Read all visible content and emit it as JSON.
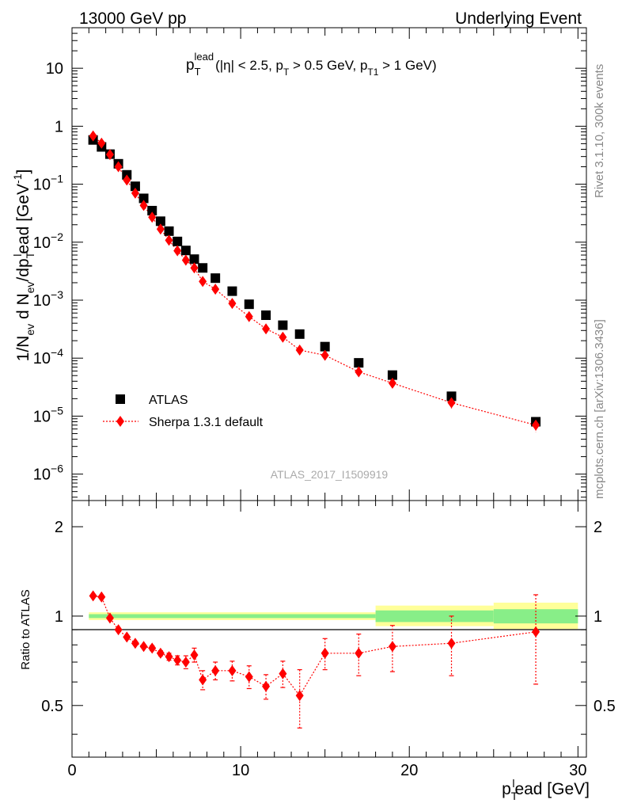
{
  "header": {
    "left": "13000 GeV pp",
    "right": "Underlying Event",
    "side_rivet": "Rivet 3.1.10,  300k events",
    "side_mcplots": "mcplots.cern.ch [arXiv:1306.3436]",
    "watermark": "ATLAS_2017_I1509919"
  },
  "colors": {
    "data": "#000000",
    "mc": "#ff0000",
    "band_outer": "#ffff99",
    "band_inner": "#88ee88"
  },
  "chart_data": [
    {
      "type": "scatter",
      "panel": "main",
      "title": "pT lead (|η| < 2.5, pT > 0.5 GeV, pT1 > 1 GeV)",
      "title_parts": {
        "p": "p",
        "sub_T": "T",
        "sup_lead": "lead",
        "mid1": "(|η| < 2.5, p",
        "mid2": " > 0.5 GeV, p",
        "sub_T1": "T1",
        "end": " > 1 GeV)"
      },
      "ylabel": "1/Nev d Nev/dpTlead [GeV-1]",
      "ylabel_parts": {
        "a": "1/N",
        "ev": "ev",
        "b": " d N",
        "ev2": "ev",
        "c": "/dp",
        "T": "T",
        "l": "l",
        "d": "ead [GeV",
        "m1": "-1",
        "e": "]"
      },
      "xlabel": "pTlead [GeV]",
      "xlim": [
        0,
        30.5
      ],
      "ylim": [
        3.5e-07,
        50
      ],
      "yscale": "log",
      "ytick_labels": [
        {
          "value": 10,
          "base": "10",
          "exp": ""
        },
        {
          "value": 1,
          "base": "1",
          "exp": ""
        },
        {
          "value": 0.1,
          "base": "10",
          "exp": "−1"
        },
        {
          "value": 0.01,
          "base": "10",
          "exp": "−2"
        },
        {
          "value": 0.001,
          "base": "10",
          "exp": "−3"
        },
        {
          "value": 0.0001,
          "base": "10",
          "exp": "−4"
        },
        {
          "value": 1e-05,
          "base": "10",
          "exp": "−5"
        },
        {
          "value": 1e-06,
          "base": "10",
          "exp": "−6"
        }
      ],
      "legend": {
        "position": "lower-left",
        "entries": [
          "ATLAS",
          "Sherpa 1.3.1 default"
        ]
      },
      "series": [
        {
          "name": "ATLAS",
          "x": [
            1.25,
            1.75,
            2.25,
            2.75,
            3.25,
            3.75,
            4.25,
            4.75,
            5.25,
            5.75,
            6.25,
            6.75,
            7.25,
            7.75,
            8.5,
            9.5,
            10.5,
            11.5,
            12.5,
            13.5,
            15,
            17,
            19,
            22.5,
            27.5
          ],
          "y": [
            0.58,
            0.44,
            0.33,
            0.225,
            0.145,
            0.092,
            0.057,
            0.035,
            0.023,
            0.0155,
            0.0103,
            0.0072,
            0.0051,
            0.0036,
            0.0024,
            0.00143,
            0.00085,
            0.00055,
            0.00037,
            0.00026,
            0.000158,
            8.3e-05,
            5.1e-05,
            2.2e-05,
            8e-06
          ],
          "marker": "square"
        },
        {
          "name": "Sherpa 1.3.1 default",
          "x": [
            1.25,
            1.75,
            2.25,
            2.75,
            3.25,
            3.75,
            4.25,
            4.75,
            5.25,
            5.75,
            6.25,
            6.75,
            7.25,
            7.75,
            8.5,
            9.5,
            10.5,
            11.5,
            12.5,
            13.5,
            15,
            17,
            19,
            22.5,
            27.5
          ],
          "y": [
            0.68,
            0.51,
            0.325,
            0.2,
            0.118,
            0.07,
            0.043,
            0.027,
            0.0168,
            0.0108,
            0.0071,
            0.0049,
            0.0036,
            0.0021,
            0.00155,
            0.00088,
            0.00052,
            0.00032,
            0.00023,
            0.000138,
            0.000112,
            5.8e-05,
            3.7e-05,
            1.7e-05,
            7e-06
          ],
          "yerr": [
            0,
            0,
            0,
            0,
            0,
            0,
            0,
            0,
            0,
            0,
            0,
            0,
            0,
            0,
            0,
            0,
            0,
            0,
            0,
            0.15,
            0.1,
            0.15,
            0.15,
            0.2,
            0.25
          ],
          "marker": "diamond",
          "line": "dotted"
        }
      ]
    },
    {
      "type": "line",
      "panel": "ratio",
      "ylabel": "Ratio to ATLAS",
      "xlabel": "pTlead [GeV]",
      "xlim": [
        0,
        30.5
      ],
      "ylim": [
        0.335,
        2.45
      ],
      "yscale": "log",
      "ytick_labels": [
        {
          "value": 0.5,
          "label": "0.5"
        },
        {
          "value": 1,
          "label": "1"
        },
        {
          "value": 2,
          "label": "2"
        }
      ],
      "xtick_labels": [
        {
          "value": 0,
          "label": "0"
        },
        {
          "value": 10,
          "label": "10"
        },
        {
          "value": 20,
          "label": "20"
        },
        {
          "value": 30,
          "label": "30"
        }
      ],
      "uncertainty_bands": [
        {
          "x": [
            1,
            18
          ],
          "outer": [
            0.97,
            1.03
          ],
          "inner": [
            0.985,
            1.015
          ]
        },
        {
          "x": [
            18,
            25
          ],
          "outer": [
            0.925,
            1.085
          ],
          "inner": [
            0.955,
            1.045
          ]
        },
        {
          "x": [
            25,
            30
          ],
          "outer": [
            0.905,
            1.11
          ],
          "inner": [
            0.945,
            1.055
          ]
        }
      ],
      "series": [
        {
          "name": "Sherpa 1.3.1 default",
          "x": [
            1.25,
            1.75,
            2.25,
            2.75,
            3.25,
            3.75,
            4.25,
            4.75,
            5.25,
            5.75,
            6.25,
            6.75,
            7.25,
            7.75,
            8.5,
            9.5,
            10.5,
            11.5,
            12.5,
            13.5,
            15,
            17,
            19,
            22.5,
            27.5
          ],
          "y": [
            1.17,
            1.16,
            0.985,
            0.9,
            0.85,
            0.81,
            0.79,
            0.78,
            0.75,
            0.73,
            0.71,
            0.7,
            0.74,
            0.61,
            0.655,
            0.655,
            0.625,
            0.58,
            0.64,
            0.54,
            0.75,
            0.75,
            0.79,
            0.81,
            0.885
          ],
          "ylow": [
            1.17,
            1.16,
            0.985,
            0.89,
            0.84,
            0.8,
            0.78,
            0.765,
            0.735,
            0.71,
            0.685,
            0.665,
            0.7,
            0.565,
            0.61,
            0.605,
            0.57,
            0.525,
            0.575,
            0.42,
            0.66,
            0.63,
            0.65,
            0.63,
            0.59
          ],
          "yhigh": [
            1.17,
            1.16,
            0.985,
            0.91,
            0.86,
            0.82,
            0.8,
            0.795,
            0.765,
            0.75,
            0.735,
            0.735,
            0.78,
            0.655,
            0.7,
            0.705,
            0.68,
            0.635,
            0.705,
            0.66,
            0.84,
            0.87,
            0.93,
            1.0,
            1.18
          ],
          "marker": "diamond",
          "line": "dotted"
        }
      ]
    }
  ]
}
